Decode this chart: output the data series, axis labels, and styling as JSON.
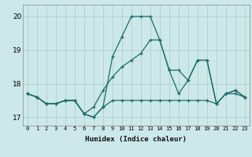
{
  "xlabel": "Humidex (Indice chaleur)",
  "x": [
    0,
    1,
    2,
    3,
    4,
    5,
    6,
    7,
    8,
    9,
    10,
    11,
    12,
    13,
    14,
    15,
    16,
    17,
    18,
    19,
    20,
    21,
    22,
    23
  ],
  "line1": [
    17.7,
    17.6,
    17.4,
    17.4,
    17.5,
    17.5,
    17.1,
    17.0,
    17.3,
    17.5,
    17.5,
    17.5,
    17.5,
    17.5,
    17.5,
    17.5,
    17.5,
    17.5,
    17.5,
    17.5,
    17.4,
    17.7,
    17.7,
    17.6
  ],
  "line2": [
    17.7,
    17.6,
    17.4,
    17.4,
    17.5,
    17.5,
    17.1,
    17.0,
    17.3,
    18.8,
    19.4,
    20.0,
    20.0,
    20.0,
    19.3,
    18.4,
    17.7,
    18.1,
    18.7,
    18.7,
    17.4,
    17.7,
    17.8,
    17.6
  ],
  "line3": [
    17.7,
    17.6,
    17.4,
    17.4,
    17.5,
    17.5,
    17.1,
    17.3,
    17.8,
    18.2,
    18.5,
    18.7,
    18.9,
    19.3,
    19.3,
    18.4,
    18.4,
    18.1,
    18.7,
    18.7,
    17.4,
    17.7,
    17.8,
    17.6
  ],
  "bg_color": "#cce8e8",
  "grid_color": "#b0d0d0",
  "line_color": "#1a6b6b",
  "ylim_min": 16.75,
  "ylim_max": 20.35,
  "yticks": [
    17,
    18,
    19,
    20
  ],
  "xticks": [
    0,
    1,
    2,
    3,
    4,
    5,
    6,
    7,
    8,
    9,
    10,
    11,
    12,
    13,
    14,
    15,
    16,
    17,
    18,
    19,
    20,
    21,
    22,
    23
  ]
}
